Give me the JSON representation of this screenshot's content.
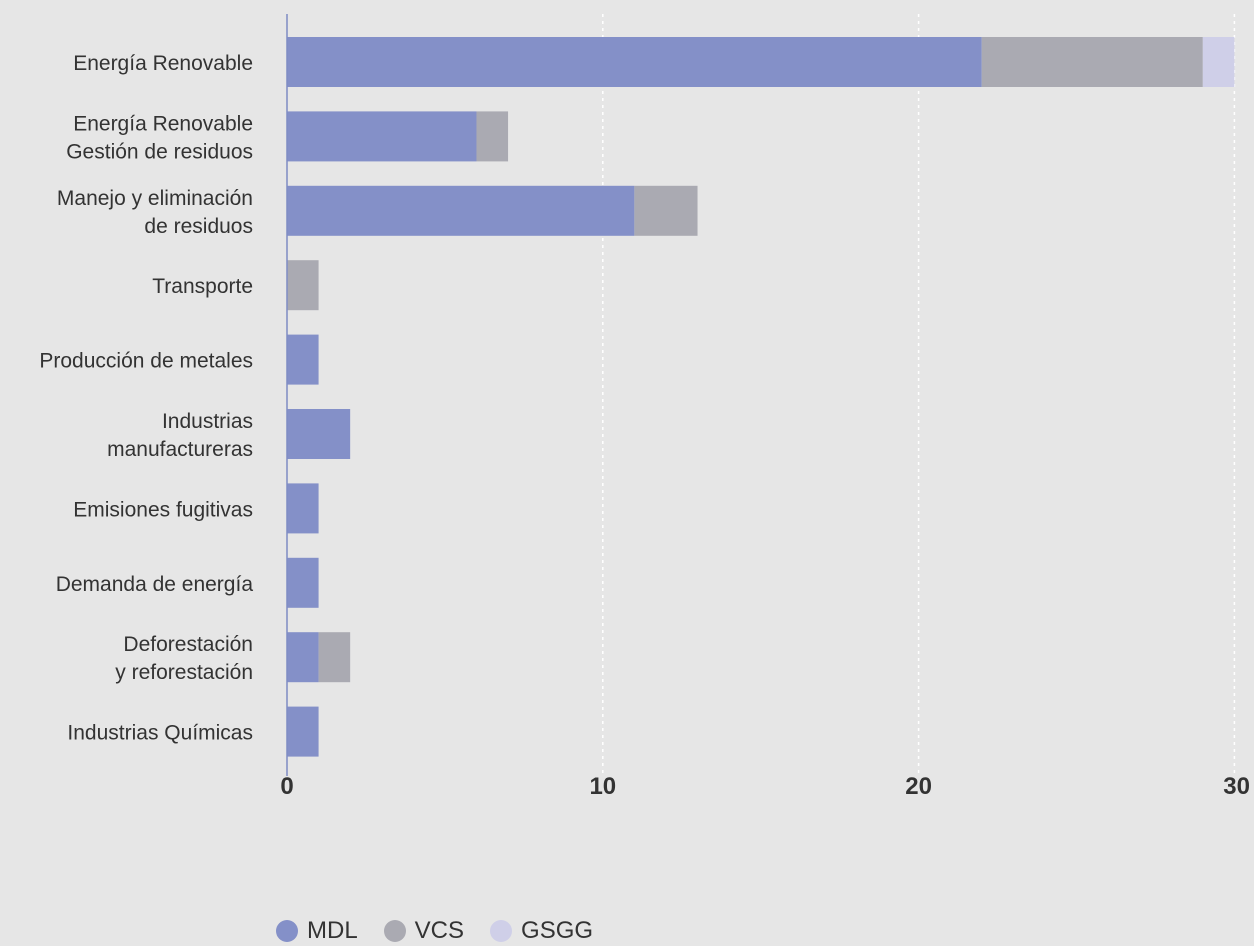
{
  "chart_data": {
    "type": "bar",
    "orientation": "horizontal",
    "stacked": true,
    "categories": [
      [
        "Energía Renovable"
      ],
      [
        "Energía Renovable",
        "Gestión de residuos"
      ],
      [
        "Manejo y eliminación",
        "de residuos"
      ],
      [
        "Transporte"
      ],
      [
        "Producción de metales"
      ],
      [
        "Industrias",
        "manufactureras"
      ],
      [
        "Emisiones fugitivas"
      ],
      [
        "Demanda de energía"
      ],
      [
        "Deforestación",
        "y reforestación"
      ],
      [
        "Industrias Químicas"
      ]
    ],
    "series": [
      {
        "name": "MDL",
        "color": "#8490c8",
        "values": [
          22,
          6,
          11,
          0,
          1,
          2,
          1,
          1,
          1,
          1
        ]
      },
      {
        "name": "VCS",
        "color": "#aaaab2",
        "values": [
          7,
          1,
          2,
          1,
          0,
          0,
          0,
          0,
          1,
          0
        ]
      },
      {
        "name": "GSGG",
        "color": "#cfcfe8",
        "values": [
          1,
          0,
          0,
          0,
          0,
          0,
          0,
          0,
          0,
          0
        ]
      }
    ],
    "xlim": [
      0,
      30
    ],
    "xticks": [
      "0",
      "10",
      "20",
      "30"
    ],
    "grid": "vertical dashed",
    "legend": "bottom"
  }
}
